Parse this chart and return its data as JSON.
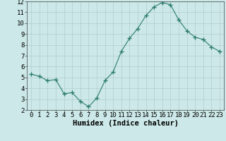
{
  "x": [
    0,
    1,
    2,
    3,
    4,
    5,
    6,
    7,
    8,
    9,
    10,
    11,
    12,
    13,
    14,
    15,
    16,
    17,
    18,
    19,
    20,
    21,
    22,
    23
  ],
  "y": [
    5.3,
    5.1,
    4.7,
    4.8,
    3.5,
    3.6,
    2.8,
    2.3,
    3.1,
    4.7,
    5.5,
    7.4,
    8.6,
    9.5,
    10.7,
    11.5,
    11.9,
    11.7,
    10.3,
    9.3,
    8.7,
    8.5,
    7.8,
    7.4
  ],
  "xlabel": "Humidex (Indice chaleur)",
  "ylim": [
    2,
    12
  ],
  "xlim_min": -0.5,
  "xlim_max": 23.5,
  "yticks": [
    2,
    3,
    4,
    5,
    6,
    7,
    8,
    9,
    10,
    11,
    12
  ],
  "xticks": [
    0,
    1,
    2,
    3,
    4,
    5,
    6,
    7,
    8,
    9,
    10,
    11,
    12,
    13,
    14,
    15,
    16,
    17,
    18,
    19,
    20,
    21,
    22,
    23
  ],
  "line_color": "#2e7d6e",
  "marker_color": "#2e7d6e",
  "bg_color": "#cce8e8",
  "grid_color": "#b0cccc",
  "xlabel_fontsize": 7.5,
  "tick_fontsize": 6.5
}
